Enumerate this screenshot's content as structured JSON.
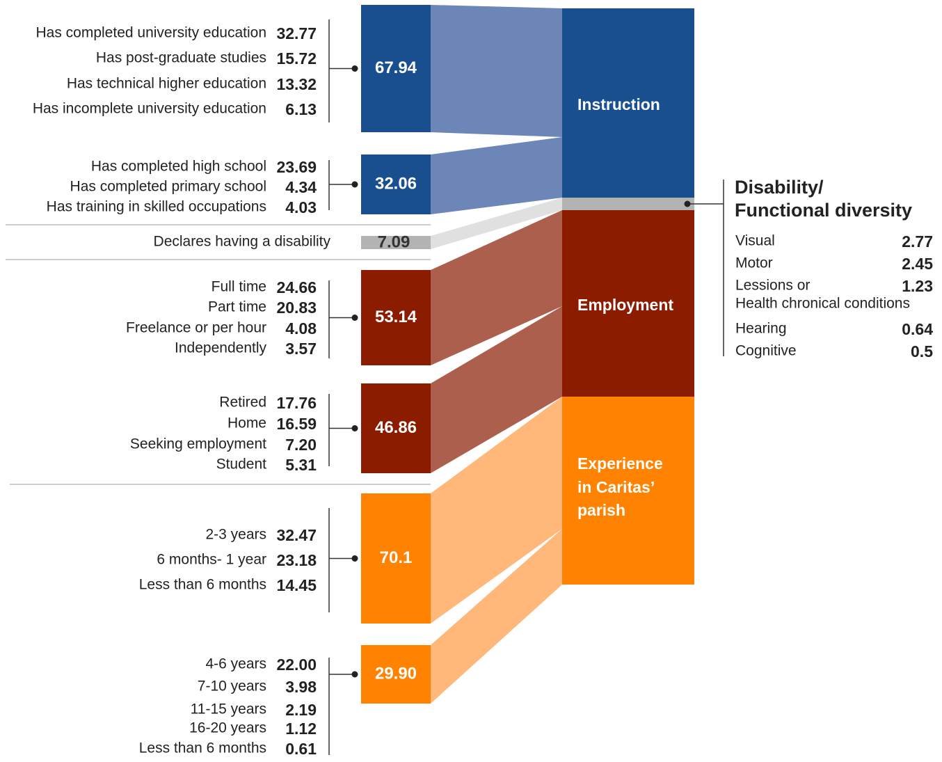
{
  "groups": [
    {
      "value": "67.94",
      "items": [
        {
          "label": "Has completed university education",
          "value": "32.77"
        },
        {
          "label": "Has post-graduate studies",
          "value": "15.72"
        },
        {
          "label": "Has technical higher education",
          "value": "13.32"
        },
        {
          "label": "Has incomplete university education",
          "value": "6.13"
        }
      ]
    },
    {
      "value": "32.06",
      "items": [
        {
          "label": "Has completed high school",
          "value": "23.69"
        },
        {
          "label": "Has completed primary school",
          "value": "4.34"
        },
        {
          "label": "Has training in skilled occupations",
          "value": "4.03"
        }
      ]
    },
    {
      "value": "53.14",
      "items": [
        {
          "label": "Full time",
          "value": "24.66"
        },
        {
          "label": "Part time",
          "value": "20.83"
        },
        {
          "label": "Freelance or per hour",
          "value": "4.08"
        },
        {
          "label": "Independently",
          "value": "3.57"
        }
      ]
    },
    {
      "value": "46.86",
      "items": [
        {
          "label": "Retired",
          "value": "17.76"
        },
        {
          "label": "Home",
          "value": "16.59"
        },
        {
          "label": "Seeking employment",
          "value": "7.20"
        },
        {
          "label": "Student",
          "value": "5.31"
        }
      ]
    },
    {
      "value": "70.1",
      "items": [
        {
          "label": "2-3 years",
          "value": "32.47"
        },
        {
          "label": "6 months- 1 year",
          "value": "23.18"
        },
        {
          "label": "Less than 6 months",
          "value": "14.45"
        }
      ]
    },
    {
      "value": "29.90",
      "items": [
        {
          "label": "4-6 years",
          "value": "22.00"
        },
        {
          "label": "7-10 years",
          "value": "3.98"
        },
        {
          "label": "11-15 years",
          "value": "2.19"
        },
        {
          "label": "16-20 years",
          "value": "1.12"
        },
        {
          "label": "Less than 6 months",
          "value": "0.61"
        }
      ]
    }
  ],
  "disability_row": {
    "label": "Declares having a disability",
    "value": "7.09"
  },
  "categories": [
    "Instruction",
    "Employment",
    [
      "Experience",
      "in Caritas’",
      "parish"
    ]
  ],
  "disability_panel": {
    "title": [
      "Disability/",
      "Functional diversity"
    ],
    "items": [
      {
        "label": "Visual",
        "value": "2.77"
      },
      {
        "label": "Motor",
        "value": "2.45"
      },
      {
        "label": "Lessions or",
        "label_line2": "Health chronical conditions",
        "value": "1.23"
      },
      {
        "label": "Hearing",
        "value": "0.64"
      },
      {
        "label": "Cognitive",
        "value": "0.5"
      }
    ]
  }
}
